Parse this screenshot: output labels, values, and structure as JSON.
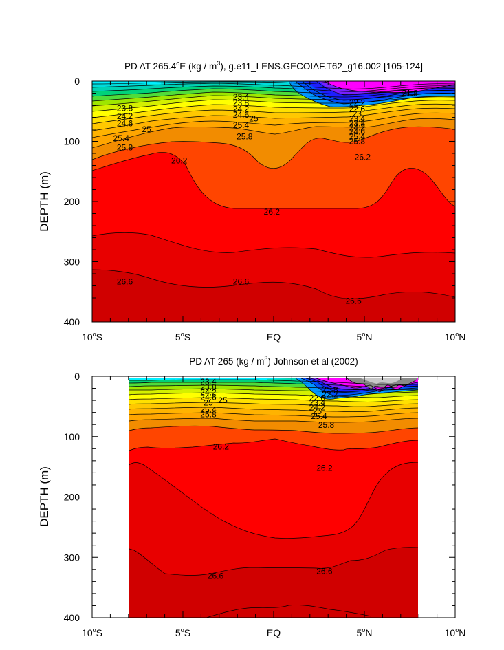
{
  "chart_data": [
    {
      "type": "heatmap",
      "title": "PD AT 265.4°E (kg / m³), g.e11_LENS.GECOIAF.T62_g16.002 [105-124]",
      "title_parts": {
        "a": "PD AT 265.4",
        "sup1": "o",
        "b": "E (kg / m",
        "sup2": "3",
        "c": "), g.e11_LENS.GECOIAF.T62_g16.002 [105-124]"
      },
      "ylabel": "DEPTH (m)",
      "xlim": [
        -10,
        10
      ],
      "ylim": [
        0,
        400
      ],
      "yticks": [
        "0",
        "100",
        "200",
        "300",
        "400"
      ],
      "xticks": [
        {
          "value": -10,
          "num": "10",
          "deg": "o",
          "hemi": "S"
        },
        {
          "value": -5,
          "num": "5",
          "deg": "o",
          "hemi": "S"
        },
        {
          "value": 0,
          "num": "EQ",
          "deg": "",
          "hemi": ""
        },
        {
          "value": 5,
          "num": "5",
          "deg": "o",
          "hemi": "N"
        },
        {
          "value": 10,
          "num": "10",
          "deg": "o",
          "hemi": "N"
        }
      ],
      "contour_labels": [
        {
          "text": "23.4",
          "lat": -1.8,
          "depth": 26
        },
        {
          "text": "21.8",
          "lat": 7.5,
          "depth": 20
        },
        {
          "text": "23.8",
          "lat": -8.2,
          "depth": 45
        },
        {
          "text": "23.8",
          "lat": -1.8,
          "depth": 36
        },
        {
          "text": "24.2",
          "lat": -8.2,
          "depth": 58
        },
        {
          "text": "24.2",
          "lat": -1.8,
          "depth": 46
        },
        {
          "text": "24.6",
          "lat": -8.2,
          "depth": 70
        },
        {
          "text": "24.6",
          "lat": -1.8,
          "depth": 56
        },
        {
          "text": "25",
          "lat": -7.0,
          "depth": 80
        },
        {
          "text": "25",
          "lat": -1.1,
          "depth": 62
        },
        {
          "text": "25.4",
          "lat": -8.4,
          "depth": 95
        },
        {
          "text": "25.4",
          "lat": -1.8,
          "depth": 73
        },
        {
          "text": "25.8",
          "lat": -8.2,
          "depth": 110
        },
        {
          "text": "25.8",
          "lat": -1.6,
          "depth": 92
        },
        {
          "text": "22.2",
          "lat": 4.6,
          "depth": 36
        },
        {
          "text": "22.6",
          "lat": 4.6,
          "depth": 46
        },
        {
          "text": "23",
          "lat": 4.6,
          "depth": 54
        },
        {
          "text": "23.4",
          "lat": 4.6,
          "depth": 62
        },
        {
          "text": "23.8",
          "lat": 4.6,
          "depth": 70
        },
        {
          "text": "24.2",
          "lat": 4.6,
          "depth": 77
        },
        {
          "text": "24.6",
          "lat": 4.6,
          "depth": 84
        },
        {
          "text": "25.4",
          "lat": 4.6,
          "depth": 92
        },
        {
          "text": "25.8",
          "lat": 4.6,
          "depth": 100
        },
        {
          "text": "26.2",
          "lat": -5.2,
          "depth": 132
        },
        {
          "text": "26.2",
          "lat": -0.1,
          "depth": 217
        },
        {
          "text": "26.2",
          "lat": 4.9,
          "depth": 126
        },
        {
          "text": "26.6",
          "lat": -8.2,
          "depth": 333
        },
        {
          "text": "26.6",
          "lat": -1.8,
          "depth": 333
        },
        {
          "text": "26.6",
          "lat": 4.4,
          "depth": 365
        }
      ]
    },
    {
      "type": "heatmap",
      "title": "PD AT 265 (kg / m³) Johnson et al (2002)",
      "title_parts": {
        "a": "PD AT 265 (kg / m",
        "sup1": "3",
        "b": ") Johnson et al (2002)"
      },
      "ylabel": "DEPTH (m)",
      "xlim": [
        -10,
        10
      ],
      "ylim": [
        0,
        400
      ],
      "data_lon_range": [
        -8,
        8
      ],
      "yticks": [
        "0",
        "100",
        "200",
        "300",
        "400"
      ],
      "xticks": [
        {
          "value": -10,
          "num": "10",
          "deg": "o",
          "hemi": "S"
        },
        {
          "value": -5,
          "num": "5",
          "deg": "o",
          "hemi": "S"
        },
        {
          "value": 0,
          "num": "EQ",
          "deg": "",
          "hemi": ""
        },
        {
          "value": 5,
          "num": "5",
          "deg": "o",
          "hemi": "N"
        },
        {
          "value": 10,
          "num": "10",
          "deg": "o",
          "hemi": "N"
        }
      ],
      "contour_labels": [
        {
          "text": "23.4",
          "lat": -3.6,
          "depth": 9
        },
        {
          "text": "23.8",
          "lat": -3.6,
          "depth": 18
        },
        {
          "text": "24.2",
          "lat": -3.6,
          "depth": 27
        },
        {
          "text": "24.6",
          "lat": -3.6,
          "depth": 35
        },
        {
          "text": "25",
          "lat": -2.8,
          "depth": 40
        },
        {
          "text": "25",
          "lat": -3.6,
          "depth": 44
        },
        {
          "text": "25.4",
          "lat": -3.6,
          "depth": 55
        },
        {
          "text": "25.8",
          "lat": -3.6,
          "depth": 63
        },
        {
          "text": "21.8",
          "lat": 3.1,
          "depth": 22
        },
        {
          "text": "22.2",
          "lat": 3.1,
          "depth": 30
        },
        {
          "text": "22.6",
          "lat": 2.4,
          "depth": 36
        },
        {
          "text": "23.4",
          "lat": 2.4,
          "depth": 44
        },
        {
          "text": "24.2",
          "lat": 2.4,
          "depth": 52
        },
        {
          "text": "25",
          "lat": 2.4,
          "depth": 58
        },
        {
          "text": "25.4",
          "lat": 2.5,
          "depth": 66
        },
        {
          "text": "25.8",
          "lat": 2.9,
          "depth": 81
        },
        {
          "text": "26.2",
          "lat": -2.9,
          "depth": 117
        },
        {
          "text": "26.2",
          "lat": 2.8,
          "depth": 152
        },
        {
          "text": "26.6",
          "lat": -3.2,
          "depth": 331
        },
        {
          "text": "26.6",
          "lat": 2.8,
          "depth": 323
        }
      ]
    }
  ]
}
